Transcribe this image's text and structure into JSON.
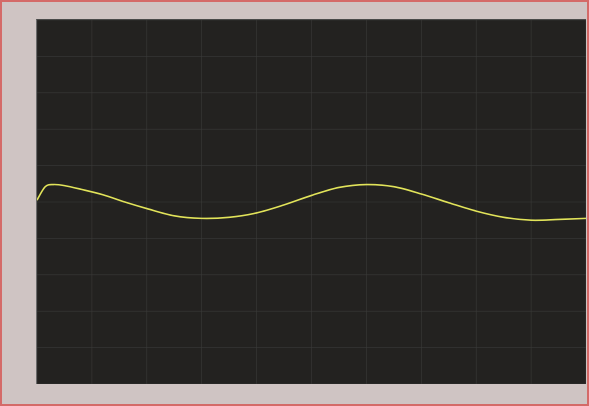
{
  "window": {
    "title": "",
    "top_left_label": "",
    "status_text": ""
  },
  "colors": {
    "frame_border": "#d46a68",
    "plot_background": "#232220",
    "trace": "#e2e45a",
    "grid": "#3a3a38"
  },
  "chart_data": {
    "type": "line",
    "title": "",
    "xlabel": "",
    "ylabel": "",
    "grid": true,
    "xlim": [
      0,
      10
    ],
    "ylim": [
      0,
      10
    ],
    "yticks": [
      "",
      "",
      "",
      "",
      "",
      "",
      "",
      "",
      "",
      "",
      ""
    ],
    "xticks": [
      "",
      "",
      "",
      "",
      "",
      "",
      "",
      "",
      "",
      "",
      ""
    ],
    "series": [
      {
        "x": [
          0,
          0.15,
          0.3,
          0.5,
          0.8,
          1.2,
          1.6,
          2.0,
          2.5,
          3.0,
          3.5,
          4.0,
          4.5,
          5.0,
          5.5,
          6.0,
          6.5,
          7.0,
          7.5,
          8.0,
          8.5,
          9.0,
          9.5,
          10
        ],
        "y": [
          5.05,
          5.42,
          5.48,
          5.45,
          5.35,
          5.2,
          5.0,
          4.82,
          4.62,
          4.55,
          4.58,
          4.7,
          4.92,
          5.18,
          5.4,
          5.48,
          5.42,
          5.22,
          4.98,
          4.75,
          4.58,
          4.5,
          4.52,
          4.55
        ]
      }
    ]
  }
}
